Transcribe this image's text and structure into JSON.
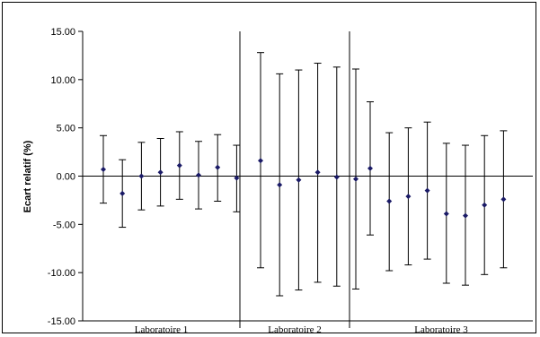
{
  "chart_data": {
    "type": "scatter",
    "title": "",
    "xlabel": "",
    "ylabel": "Ecart relatif (%)",
    "ylim": [
      -15,
      15
    ],
    "yticks": [
      15,
      10,
      5,
      0,
      -5,
      -10,
      -15
    ],
    "ytick_labels": [
      "15.00",
      "10.00",
      "5.00",
      "0.00",
      "-5.00",
      "-10.00",
      "-15.00"
    ],
    "grid": false,
    "legend": "none",
    "error_bars": true,
    "marker_color": "#1a1a66",
    "errorbar_color": "#000000",
    "groups": [
      {
        "label": "Laboratoire 1",
        "points": [
          {
            "value": 0.7,
            "low": -2.8,
            "high": 4.2
          },
          {
            "value": -1.8,
            "low": -5.3,
            "high": 1.7
          },
          {
            "value": 0.0,
            "low": -3.5,
            "high": 3.5
          },
          {
            "value": 0.4,
            "low": -3.1,
            "high": 3.9
          },
          {
            "value": 1.1,
            "low": -2.4,
            "high": 4.6
          },
          {
            "value": 0.1,
            "low": -3.4,
            "high": 3.6
          },
          {
            "value": 0.9,
            "low": -2.6,
            "high": 4.3
          },
          {
            "value": -0.2,
            "low": -3.7,
            "high": 3.2
          }
        ]
      },
      {
        "label": "Laboratoire 2",
        "points": [
          {
            "value": 1.6,
            "low": -9.5,
            "high": 12.8
          },
          {
            "value": -0.9,
            "low": -12.4,
            "high": 10.6
          },
          {
            "value": -0.4,
            "low": -11.8,
            "high": 11.0
          },
          {
            "value": 0.4,
            "low": -11.0,
            "high": 11.7
          },
          {
            "value": -0.1,
            "low": -11.4,
            "high": 11.3
          },
          {
            "value": -0.3,
            "low": -11.7,
            "high": 11.1
          }
        ]
      },
      {
        "label": "Laboratoire 3",
        "points": [
          {
            "value": 0.8,
            "low": -6.1,
            "high": 7.7
          },
          {
            "value": -2.6,
            "low": -9.8,
            "high": 4.5
          },
          {
            "value": -2.1,
            "low": -9.2,
            "high": 5.0
          },
          {
            "value": -1.5,
            "low": -8.6,
            "high": 5.6
          },
          {
            "value": -3.9,
            "low": -11.1,
            "high": 3.4
          },
          {
            "value": -4.1,
            "low": -11.3,
            "high": 3.2
          },
          {
            "value": -3.0,
            "low": -10.2,
            "high": 4.2
          },
          {
            "value": -2.4,
            "low": -9.5,
            "high": 4.7
          }
        ]
      }
    ]
  }
}
